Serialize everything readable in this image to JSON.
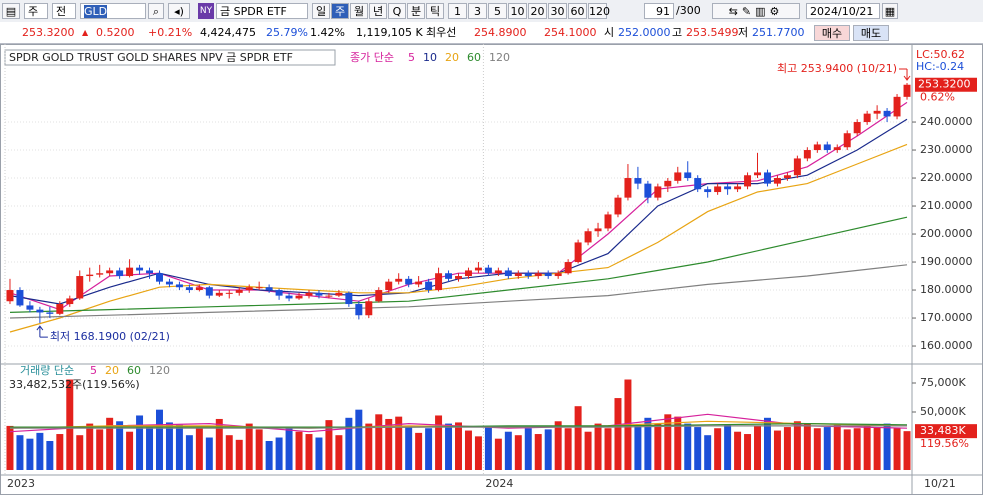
{
  "toolbar": {
    "period_select": "주",
    "market_select": "전",
    "symbol": "GLD",
    "exchange": "NY",
    "name": "금 SPDR ETF",
    "period_tabs": [
      "일",
      "주",
      "월",
      "년",
      "Q",
      "분",
      "틱"
    ],
    "intervals": [
      "1",
      "3",
      "5",
      "10",
      "20",
      "30",
      "60",
      "120"
    ],
    "count": "91",
    "count_max": "/300",
    "date": "2024/10/21"
  },
  "info_bar": {
    "price": "253.3200",
    "change": "0.5200",
    "change_pct": "+0.21%",
    "volume": "4,424,475",
    "ratio": "25.79%",
    "turnover_pct": "1.42%",
    "amount": "1,119,105 K",
    "best_label": "최우선",
    "ask": "254.8900",
    "bid": "254.1000",
    "open_label": "시",
    "open": "252.0000",
    "high_label": "고",
    "high": "253.5499",
    "low_label": "저",
    "low": "251.7700",
    "buy": "매수",
    "sell": "매도"
  },
  "chart_data": [
    {
      "type": "candlestick",
      "title": "SPDR GOLD TRUST GOLD SHARES NPV  금 SPDR ETF",
      "legend_title": "종가 단순",
      "open": [
        176,
        180,
        174.5,
        173,
        172,
        171.5,
        175,
        177,
        185,
        185.5,
        186,
        187,
        185,
        188,
        187,
        186,
        183,
        182,
        181,
        180,
        181,
        178,
        179,
        179,
        180,
        181,
        181,
        180,
        178,
        177,
        178,
        179,
        178,
        178,
        179,
        175,
        171,
        176,
        180,
        183,
        184,
        182,
        183,
        180,
        186,
        184,
        185,
        187,
        188,
        186,
        187,
        185,
        186,
        185,
        186,
        185,
        186,
        190,
        197,
        201,
        202,
        207,
        213,
        220,
        218,
        213,
        217,
        219,
        222,
        220,
        216,
        215,
        217,
        216,
        217,
        221,
        222,
        218,
        220,
        221,
        227,
        230,
        232,
        230,
        231,
        236,
        240,
        243,
        244,
        242,
        249
      ],
      "high": [
        184,
        181,
        176,
        174,
        174,
        176,
        178,
        187,
        188,
        189,
        188,
        188,
        191,
        189,
        188,
        187,
        184,
        183,
        182,
        182,
        181.5,
        180,
        180,
        181,
        182,
        183,
        182,
        180.5,
        179,
        179,
        180,
        180,
        179,
        180,
        179.5,
        176,
        177,
        181,
        184,
        186,
        185,
        185,
        184,
        188,
        187,
        186,
        188,
        190,
        189,
        188,
        188,
        187,
        187,
        187,
        187,
        187,
        191,
        198,
        202,
        204,
        208,
        214,
        225,
        224,
        219,
        218,
        220,
        224,
        226,
        221,
        217,
        218,
        218,
        218,
        222,
        229,
        223,
        221,
        222,
        228,
        231,
        233,
        233,
        232,
        237,
        241,
        244,
        246,
        245,
        250,
        253.94
      ],
      "low": [
        175,
        174,
        172,
        168.19,
        170,
        171,
        174,
        176.5,
        183,
        184.5,
        185,
        184,
        184.5,
        185.5,
        184,
        182,
        181,
        180,
        179,
        179.5,
        177,
        177.5,
        177,
        178,
        179,
        180,
        179,
        176.5,
        176,
        176.5,
        177,
        177,
        177,
        177.5,
        174,
        169.5,
        170,
        175.5,
        179,
        182,
        181,
        181,
        179,
        179.5,
        183,
        183,
        184,
        186,
        185,
        185,
        184,
        184,
        184,
        184,
        184,
        184,
        185.5,
        189.5,
        196,
        199,
        201,
        206,
        212,
        216,
        211,
        212,
        215,
        218,
        219,
        215,
        213,
        214,
        214,
        215,
        216,
        220,
        217,
        217,
        219,
        220,
        226,
        229,
        229,
        229,
        230,
        235,
        239,
        241,
        240,
        241,
        248
      ],
      "close": [
        180,
        174.5,
        173,
        172,
        171.5,
        175,
        177,
        185,
        185.5,
        186,
        187,
        185,
        188,
        187,
        186,
        183,
        182,
        181,
        180,
        181,
        178,
        179,
        179,
        180,
        181,
        181,
        180,
        178,
        177,
        178,
        179,
        178,
        178,
        179,
        175,
        171,
        176,
        180,
        183,
        184,
        182,
        183,
        180,
        186,
        184,
        185,
        187,
        188,
        186,
        187,
        185,
        186,
        185,
        186,
        185,
        186,
        190,
        197,
        201,
        202,
        207,
        213,
        220,
        218,
        213,
        217,
        219,
        222,
        220,
        216,
        215,
        217,
        216,
        217,
        221,
        222,
        218,
        220,
        221,
        227,
        230,
        232,
        230,
        231,
        236,
        240,
        243,
        244,
        242,
        249,
        253.32
      ],
      "up_color": "#e3211c",
      "down_color": "#1c4fd8",
      "ylim": [
        154.3,
        264.3
      ],
      "yticks": [
        {
          "value": 160,
          "label": "160.0000"
        },
        {
          "value": 170,
          "label": "170.0000"
        },
        {
          "value": 180,
          "label": "180.0000"
        },
        {
          "value": 190,
          "label": "190.0000"
        },
        {
          "value": 200,
          "label": "200.0000"
        },
        {
          "value": 210,
          "label": "210.0000"
        },
        {
          "value": 220,
          "label": "220.0000"
        },
        {
          "value": 230,
          "label": "230.0000"
        },
        {
          "value": 240,
          "label": "240.0000"
        }
      ],
      "grid": true,
      "x_labels": [
        {
          "value": 0,
          "label": "2023"
        },
        {
          "value": 48,
          "label": "2024"
        }
      ],
      "last_label": "253.3200",
      "last_change": "0.62%",
      "lc": "LC:50.62",
      "hc": "HC:-0.24",
      "annotations": [
        {
          "label": "최고 253.9400 (10/21)",
          "x": 90,
          "y": 253.94,
          "color": "#e3211c"
        },
        {
          "label": "최저 168.1900 (02/21)",
          "x": 3,
          "y": 168.19,
          "color": "#1c2fa0"
        }
      ],
      "series": [
        {
          "name": "5",
          "color": "#d6219c",
          "x": [
            0,
            5,
            10,
            15,
            20,
            25,
            30,
            35,
            40,
            45,
            50,
            55,
            60,
            65,
            70,
            75,
            80,
            85,
            90
          ],
          "values": [
            179,
            173,
            185,
            186,
            180,
            180,
            178,
            176,
            182,
            186,
            186,
            186,
            200,
            216,
            218,
            219,
            224,
            235,
            247
          ]
        },
        {
          "name": "10",
          "color": "#1a2a8c",
          "x": [
            0,
            5,
            10,
            15,
            20,
            25,
            30,
            35,
            40,
            45,
            50,
            55,
            60,
            65,
            70,
            75,
            80,
            85,
            90
          ],
          "values": [
            178,
            175,
            181,
            186,
            182,
            180,
            179,
            178,
            179,
            184,
            186,
            186,
            193,
            210,
            218,
            218,
            221,
            230,
            241
          ]
        },
        {
          "name": "20",
          "color": "#e8a413",
          "x": [
            0,
            5,
            10,
            15,
            20,
            25,
            30,
            35,
            40,
            45,
            50,
            55,
            60,
            65,
            70,
            75,
            80,
            85,
            90
          ],
          "values": [
            165,
            170,
            176,
            181,
            182,
            181,
            180,
            179,
            179,
            181,
            184,
            186,
            188,
            197,
            208,
            215,
            218,
            225,
            232
          ]
        },
        {
          "name": "60",
          "color": "#2e8b2e",
          "x": [
            0,
            10,
            20,
            30,
            40,
            50,
            60,
            70,
            80,
            90
          ],
          "values": [
            172,
            173,
            174,
            175,
            176,
            180,
            184,
            190,
            198,
            206
          ]
        },
        {
          "name": "120",
          "color": "#808080",
          "x": [
            0,
            10,
            20,
            30,
            40,
            50,
            60,
            70,
            80,
            90
          ],
          "values": [
            170,
            171,
            172,
            173,
            174,
            176,
            178,
            182,
            185,
            189
          ]
        }
      ]
    },
    {
      "type": "volume",
      "legend_title": "거래량 단순",
      "last_label": "33,482,532주(119.56%)",
      "values": [
        38000000,
        30000000,
        27000000,
        32000000,
        25000000,
        31000000,
        78000000,
        30000000,
        40000000,
        35000000,
        45000000,
        42000000,
        33000000,
        47000000,
        38000000,
        52000000,
        41000000,
        39000000,
        30000000,
        36000000,
        28000000,
        44000000,
        30000000,
        26000000,
        40000000,
        35000000,
        25000000,
        28000000,
        36000000,
        33000000,
        31000000,
        28000000,
        43000000,
        30000000,
        45000000,
        52000000,
        40000000,
        48000000,
        44000000,
        46000000,
        37000000,
        32000000,
        36000000,
        47000000,
        40000000,
        41000000,
        34000000,
        29000000,
        38000000,
        27000000,
        33000000,
        30000000,
        36000000,
        31000000,
        35000000,
        42000000,
        36000000,
        55000000,
        33000000,
        40000000,
        36000000,
        62000000,
        78000000,
        38000000,
        45000000,
        40000000,
        48000000,
        46000000,
        40000000,
        37000000,
        30000000,
        36000000,
        39000000,
        33000000,
        31000000,
        38000000,
        45000000,
        34000000,
        37000000,
        42000000,
        40000000,
        36000000,
        37000000,
        39000000,
        35000000,
        36000000,
        38000000,
        37000000,
        40000000,
        36000000,
        33482532
      ],
      "ylim": [
        -3450000,
        89650000
      ],
      "yticks": [
        {
          "value": 75000000,
          "label": "75,000K"
        },
        {
          "value": 50000000,
          "label": "50,000K"
        }
      ],
      "last_box": "33,483K",
      "last_pct": "119.56%",
      "date_label": "10/21",
      "series": [
        {
          "name": "5",
          "color": "#d6219c",
          "x": [
            0,
            10,
            20,
            30,
            40,
            50,
            60,
            70,
            80,
            90
          ],
          "values": [
            33000000,
            38000000,
            40000000,
            33000000,
            40000000,
            36000000,
            38000000,
            48000000,
            38000000,
            36000000
          ]
        },
        {
          "name": "20",
          "color": "#e8a413",
          "x": [
            0,
            10,
            20,
            30,
            40,
            50,
            60,
            70,
            80,
            90
          ],
          "values": [
            36000000,
            38000000,
            38000000,
            36000000,
            38000000,
            37000000,
            38000000,
            42000000,
            40000000,
            38000000
          ]
        },
        {
          "name": "60",
          "color": "#2e8b2e",
          "x": [
            0,
            10,
            20,
            30,
            40,
            50,
            60,
            70,
            80,
            90
          ],
          "values": [
            37000000,
            37000000,
            37000000,
            37000000,
            37000000,
            38000000,
            38000000,
            39000000,
            40000000,
            39000000
          ]
        },
        {
          "name": "120",
          "color": "#808080",
          "x": [
            0,
            10,
            20,
            30,
            40,
            50,
            60,
            70,
            80,
            90
          ],
          "values": [
            36000000,
            36000000,
            36000000,
            36000000,
            37000000,
            37000000,
            37000000,
            38000000,
            38000000,
            38000000
          ]
        }
      ]
    }
  ]
}
